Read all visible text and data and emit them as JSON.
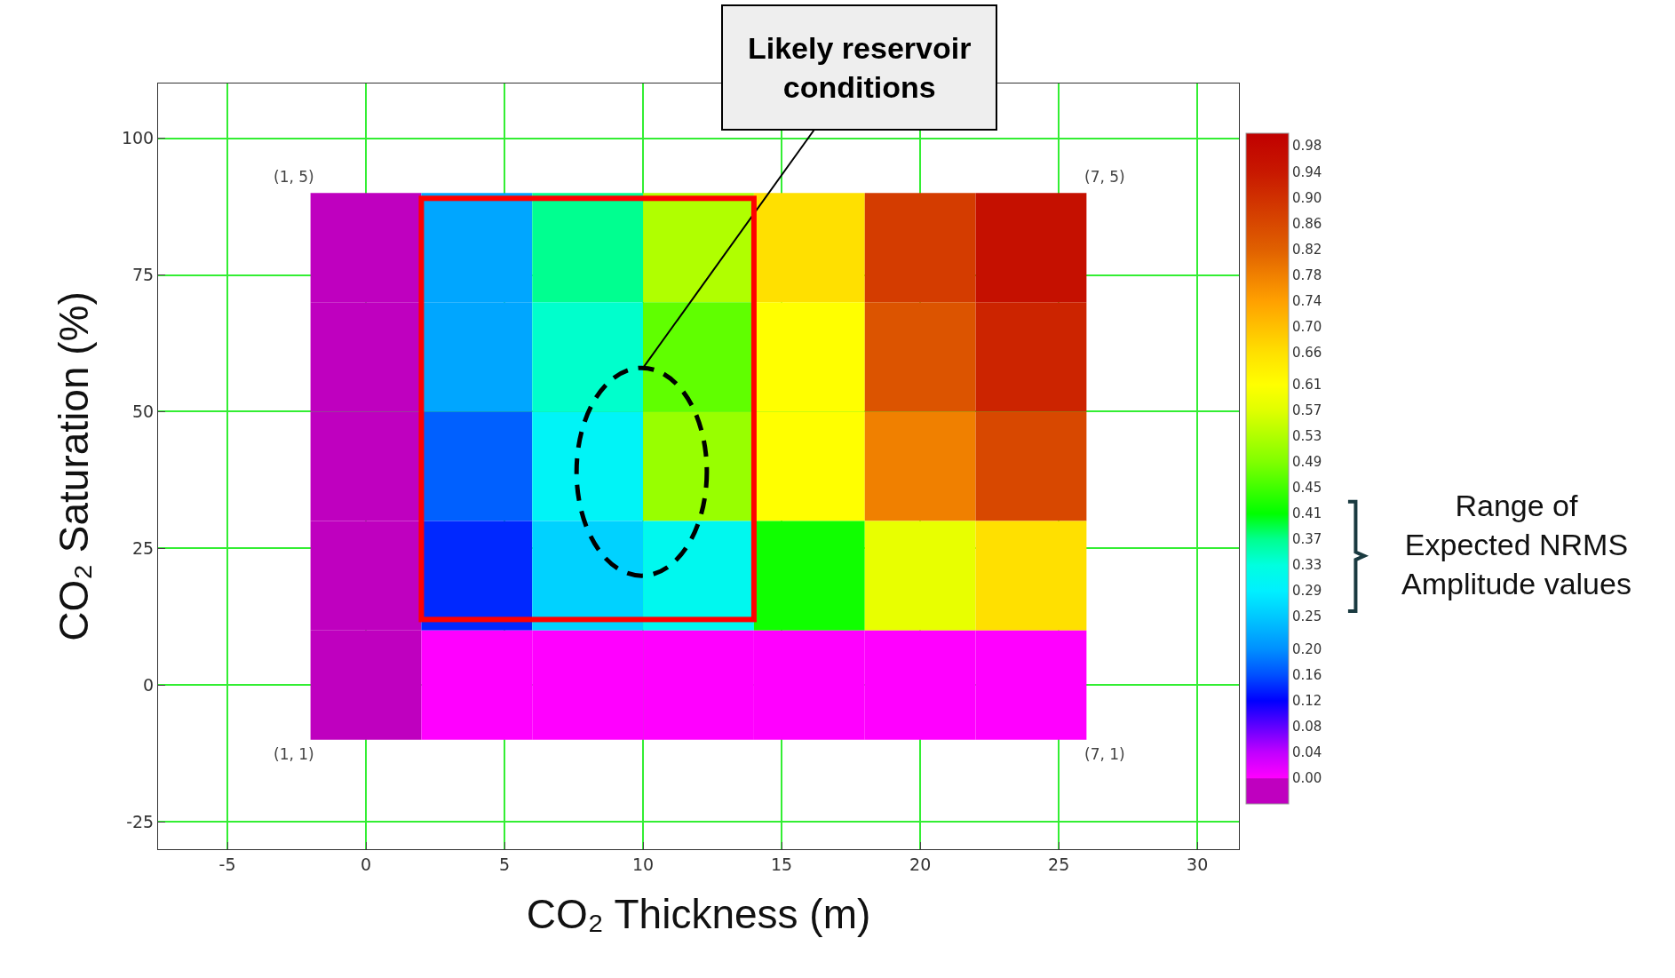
{
  "chart_data": {
    "type": "heatmap",
    "xlabel": "CO₂ Thickness (m)",
    "ylabel": "CO₂ Saturation (%)",
    "x": [
      0,
      4,
      8,
      12,
      16,
      20,
      24
    ],
    "y": [
      80,
      60,
      40,
      20,
      0
    ],
    "cells": [
      [
        -0.02,
        0.22,
        0.37,
        0.53,
        0.66,
        0.88,
        0.96
      ],
      [
        -0.02,
        0.22,
        0.34,
        0.47,
        0.61,
        0.84,
        0.92
      ],
      [
        -0.02,
        0.17,
        0.3,
        0.51,
        0.61,
        0.78,
        0.86
      ],
      [
        -0.02,
        0.14,
        0.26,
        0.31,
        0.42,
        0.58,
        0.66
      ],
      [
        -0.02,
        0.0,
        0.0,
        0.0,
        0.0,
        0.0,
        0.0
      ]
    ],
    "clim": [
      -0.04,
      1.0
    ],
    "cticks": [
      {
        "value": 0,
        "label": "0.00"
      },
      {
        "value": 0.04,
        "label": "0.04"
      },
      {
        "value": 0.08,
        "label": "0.08"
      },
      {
        "value": 0.12,
        "label": "0.12"
      },
      {
        "value": 0.16,
        "label": "0.16"
      },
      {
        "value": 0.2,
        "label": "0.20"
      },
      {
        "value": 0.25,
        "label": "0.25"
      },
      {
        "value": 0.29,
        "label": "0.29"
      },
      {
        "value": 0.33,
        "label": "0.33"
      },
      {
        "value": 0.37,
        "label": "0.37"
      },
      {
        "value": 0.41,
        "label": "0.41"
      },
      {
        "value": 0.45,
        "label": "0.45"
      },
      {
        "value": 0.49,
        "label": "0.49"
      },
      {
        "value": 0.53,
        "label": "0.53"
      },
      {
        "value": 0.57,
        "label": "0.57"
      },
      {
        "value": 0.61,
        "label": "0.61"
      },
      {
        "value": 0.66,
        "label": "0.66"
      },
      {
        "value": 0.7,
        "label": "0.70"
      },
      {
        "value": 0.74,
        "label": "0.74"
      },
      {
        "value": 0.78,
        "label": "0.78"
      },
      {
        "value": 0.82,
        "label": "0.82"
      },
      {
        "value": 0.86,
        "label": "0.86"
      },
      {
        "value": 0.9,
        "label": "0.90"
      },
      {
        "value": 0.94,
        "label": "0.94"
      },
      {
        "value": 0.98,
        "label": "0.98"
      }
    ],
    "xlim": [
      -7.5,
      31.5
    ],
    "xticks": [
      -5,
      0,
      5,
      10,
      15,
      20,
      25,
      30
    ],
    "ylim": [
      -30,
      110
    ],
    "yticks": [
      -25,
      0,
      25,
      50,
      75,
      100
    ],
    "grid": true,
    "annotations": [
      "(1, 5)",
      "(7, 5)",
      "(1, 1)",
      "(7, 1)",
      "Likely reservoir\nconditions",
      "Range of\nExpected NRMS\nAmplitude values"
    ]
  }
}
